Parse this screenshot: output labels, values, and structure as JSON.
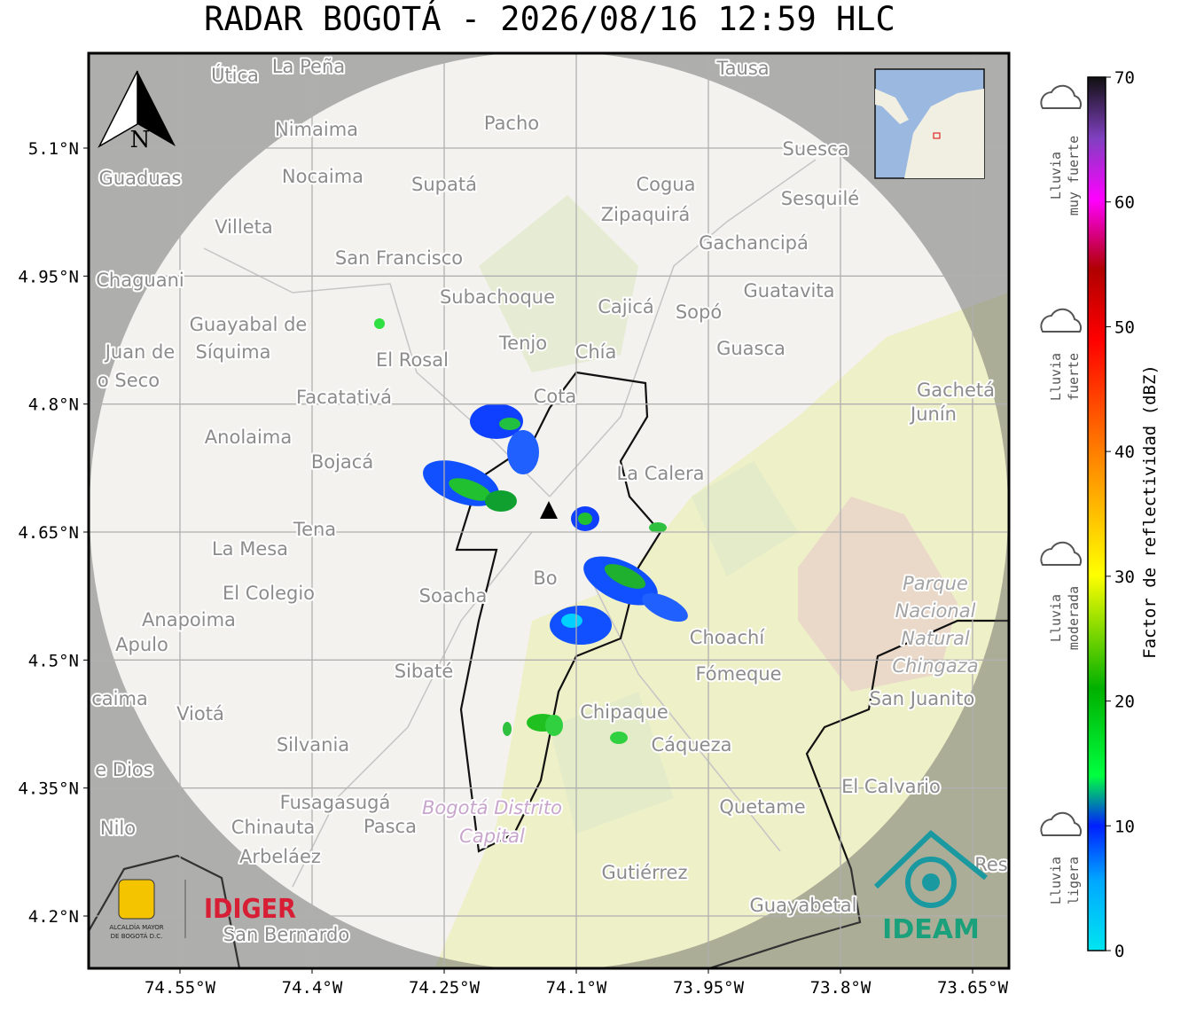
{
  "title": "RADAR BOGOTÁ - 2026/08/16 12:59 HLC",
  "map": {
    "lon_ticks": [
      {
        "value": -74.55,
        "label": "74.55°W"
      },
      {
        "value": -74.4,
        "label": "74.4°W"
      },
      {
        "value": -74.25,
        "label": "74.25°W"
      },
      {
        "value": -74.1,
        "label": "74.1°W"
      },
      {
        "value": -73.95,
        "label": "73.95°W"
      },
      {
        "value": -73.8,
        "label": "73.8°W"
      },
      {
        "value": -73.65,
        "label": "73.65°W"
      }
    ],
    "lat_ticks": [
      {
        "value": 5.1,
        "label": "5.1°N"
      },
      {
        "value": 4.95,
        "label": "4.95°N"
      },
      {
        "value": 4.8,
        "label": "4.8°N"
      },
      {
        "value": 4.65,
        "label": "4.65°N"
      },
      {
        "value": 4.5,
        "label": "4.5°N"
      },
      {
        "value": 4.35,
        "label": "4.35°N"
      },
      {
        "value": 4.2,
        "label": "4.2°N"
      }
    ],
    "north": "N",
    "places": [
      "Útica",
      "La Peña",
      "Tausa",
      "Pacho",
      "Nimaima",
      "Guaduas",
      "Nocaima",
      "Supatá",
      "Cogua",
      "Suesca",
      "Sesquilé",
      "Zipaquirá",
      "Villeta",
      "Gachancipá",
      "San Francisco",
      "Chaguani",
      "Guatavita",
      "Subachoque",
      "Cajicá",
      "Sopó",
      "Guayabal de",
      "Síquima",
      "Tenjo",
      "Chía",
      "Guasca",
      "El Rosal",
      "Juan de",
      "o Seco",
      "Facatativá",
      "Cota",
      "Gachetá",
      "Junín",
      "Anolaima",
      "Bojacá",
      "La Calera",
      "Tena",
      "La Mesa",
      "El Colegio",
      "Soacha",
      "Anapoima",
      "Apulo",
      "Choachí",
      "Sibaté",
      "Fómeque",
      "San Juanito",
      "caima",
      "Viotá",
      "Chipaque",
      "Cáqueza",
      "Silvania",
      "e Dios",
      "El Calvario",
      "Fusagasugá",
      "Quetame",
      "Nilo",
      "Chinauta",
      "Pasca",
      "Arbeláez",
      "Gutiérrez",
      "Guayabetal",
      "San Bernardo",
      "Bo",
      "Res"
    ],
    "park": [
      "Parque",
      "Nacional",
      "Natural",
      "Chingaza"
    ],
    "district": [
      "Bogotá Distrito",
      "Capital"
    ]
  },
  "colorbar": {
    "label": "Factor de reflectividad (dBZ)",
    "range": [
      0,
      70
    ],
    "ticks": [
      0,
      10,
      20,
      30,
      40,
      50,
      60,
      70
    ],
    "categories": [
      [
        "Lluvia",
        "muy fuerte"
      ],
      [
        "Lluvia",
        "fuerte"
      ],
      [
        "Lluvia",
        "moderada"
      ],
      [
        "Lluvia",
        "ligera"
      ]
    ]
  },
  "logos": {
    "alcaldia": [
      "ALCALDÍA MAYOR",
      "DE BOGOTÁ D.C."
    ],
    "idiger": "IDIGER",
    "ideam": "IDEAM"
  }
}
